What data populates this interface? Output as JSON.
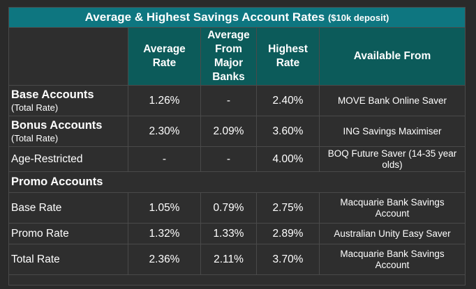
{
  "title": {
    "main": "Average & Highest Savings Account Rates",
    "sub": "($10k deposit)"
  },
  "columns": {
    "average_rate": [
      "Average",
      "Rate"
    ],
    "average_major": [
      "Average",
      "From",
      "Major",
      "Banks"
    ],
    "highest_rate": [
      "Highest",
      "Rate"
    ],
    "available_from": "Available From"
  },
  "rows": {
    "base": {
      "label": "Base Accounts",
      "sublabel": "(Total Rate)",
      "average": "1.26%",
      "major": "-",
      "highest": "2.40%",
      "available": "MOVE Bank Online Saver"
    },
    "bonus": {
      "label": "Bonus Accounts",
      "sublabel": "(Total Rate)",
      "average": "2.30%",
      "major": "2.09%",
      "highest": "3.60%",
      "available": "ING Savings Maximiser"
    },
    "age": {
      "label": "Age-Restricted",
      "average": "-",
      "major": "-",
      "highest": "4.00%",
      "available": "BOQ Future Saver (14-35 year olds)"
    },
    "promo_section": "Promo Accounts",
    "promo_base": {
      "label": "Base Rate",
      "average": "1.05%",
      "major": "0.79%",
      "highest": "2.75%",
      "available": "Macquarie Bank Savings Account"
    },
    "promo_rate": {
      "label": "Promo Rate",
      "average": "1.32%",
      "major": "1.33%",
      "highest": "2.89%",
      "available": "Australian Unity Easy Saver"
    },
    "promo_total": {
      "label": "Total Rate",
      "average": "2.36%",
      "major": "2.11%",
      "highest": "3.70%",
      "available": "Macquarie Bank Savings Account"
    }
  },
  "colors": {
    "title_bg": "#0e7680",
    "header_bg": "#0c5b5a",
    "body_bg": "#2e2e2e",
    "text": "#ffffff"
  }
}
